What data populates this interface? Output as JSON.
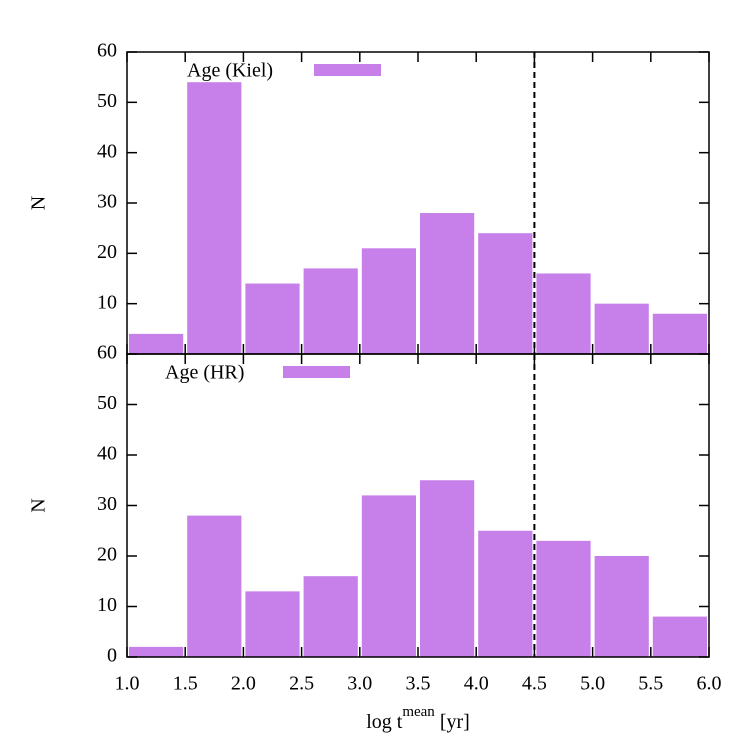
{
  "chart_data": [
    {
      "type": "histogram",
      "ylabel": "N",
      "bins": [
        1.0,
        1.5,
        2.0,
        2.5,
        3.0,
        3.5,
        4.0,
        4.5,
        5.0,
        5.5,
        6.0
      ],
      "series": [
        {
          "name": "Age (Kiel)",
          "color": "#c77fe9",
          "values": [
            4,
            54,
            14,
            17,
            21,
            28,
            24,
            16,
            10,
            8
          ]
        }
      ],
      "xlim": [
        1.0,
        6.0
      ],
      "xticks": [
        1,
        1.5,
        2,
        2.5,
        3,
        3.5,
        4,
        4.5,
        5,
        5.5,
        6
      ],
      "ylim": [
        0,
        60
      ],
      "yticks": [
        10,
        20,
        30,
        40,
        50,
        60
      ],
      "vline": 4.5
    },
    {
      "type": "histogram",
      "ylabel": "N",
      "xlabel": "log t",
      "xlabel_sup": "mean",
      "xlabel_suffix": "[yr]",
      "bins": [
        1.0,
        1.5,
        2.0,
        2.5,
        3.0,
        3.5,
        4.0,
        4.5,
        5.0,
        5.5,
        6.0
      ],
      "series": [
        {
          "name": "Age (HR)",
          "color": "#c77fe9",
          "values": [
            2,
            28,
            13,
            16,
            32,
            35,
            25,
            23,
            20,
            8
          ]
        }
      ],
      "xlim": [
        1.0,
        6.0
      ],
      "xticks": [
        {
          "value": 1,
          "label": "1.0"
        },
        {
          "value": 1.5,
          "label": "1.5"
        },
        {
          "value": 2,
          "label": "2.0"
        },
        {
          "value": 2.5,
          "label": "2.5"
        },
        {
          "value": 3,
          "label": "3.0"
        },
        {
          "value": 3.5,
          "label": "3.5"
        },
        {
          "value": 4,
          "label": "4.0"
        },
        {
          "value": 4.5,
          "label": "4.5"
        },
        {
          "value": 5,
          "label": "5.0"
        },
        {
          "value": 5.5,
          "label": "5.5"
        },
        {
          "value": 6,
          "label": "6.0"
        }
      ],
      "ylim": [
        0,
        60
      ],
      "yticks": [
        0,
        10,
        20,
        30,
        40,
        50,
        60
      ],
      "vline": 4.5
    }
  ]
}
